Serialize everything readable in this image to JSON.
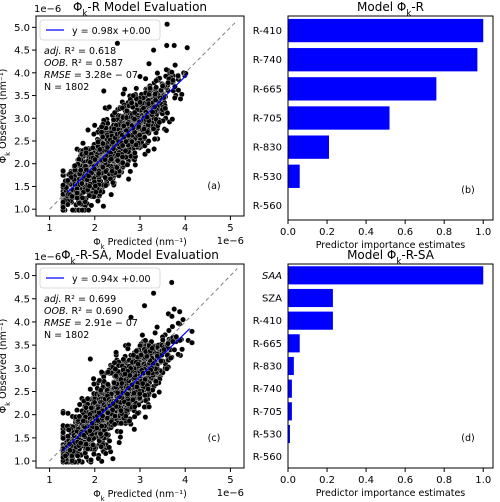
{
  "chart_data": [
    {
      "type": "scatter",
      "panel_label": "(a)",
      "title": "Φk-R Model Evaluation",
      "xlabel": "Φk Predicted (nm⁻¹)",
      "ylabel": "Φk Observed (nm⁻¹)",
      "x_offset": "1e−6",
      "y_offset": "1e−6",
      "xlim": [
        0.7,
        5.3
      ],
      "ylim": [
        0.85,
        5.25
      ],
      "xticks": [
        "1",
        "2",
        "3",
        "4",
        "5"
      ],
      "yticks": [
        "1.0",
        "1.5",
        "2.0",
        "2.5",
        "3.0",
        "3.5",
        "4.0",
        "4.5",
        "5.0"
      ],
      "legend": "y = 0.98x +0.00",
      "stats": [
        "adj. R² = 0.618",
        "OOB. R² = 0.587",
        "RMSE = 3.28e − 07",
        "N = 1802"
      ],
      "fit": {
        "slope": 0.98,
        "intercept": 0.0,
        "x_range": [
          1.4,
          4.05
        ]
      },
      "n_points": 1802,
      "seed": 11,
      "outliers": [
        [
          3.6,
          5.07
        ],
        [
          2.5,
          4.65
        ],
        [
          3.3,
          4.5
        ],
        [
          1.4,
          1.63
        ],
        [
          1.3,
          1.53
        ],
        [
          2.2,
          3.6
        ],
        [
          3.2,
          4.2
        ]
      ],
      "colors": {
        "points": "#000000",
        "edge": "#ffffff",
        "fit": "#0000ff",
        "identity": "#808080"
      }
    },
    {
      "type": "bar",
      "orientation": "horizontal",
      "panel_label": "(b)",
      "title": "Model Φk-R",
      "xlabel": "Predictor importance estimates",
      "xlim": [
        0,
        1.05
      ],
      "xticks": [
        "0.0",
        "0.2",
        "0.4",
        "0.6",
        "0.8",
        "1.0"
      ],
      "categories": [
        "R-410",
        "R-740",
        "R-665",
        "R-705",
        "R-830",
        "R-530",
        "R-560"
      ],
      "values": [
        1.0,
        0.97,
        0.76,
        0.52,
        0.21,
        0.06,
        0.0
      ],
      "color": "#0000ff"
    },
    {
      "type": "scatter",
      "panel_label": "(c)",
      "title": "Φk-R-SA, Model Evaluation",
      "xlabel": "Φk Predicted (nm⁻¹)",
      "ylabel": "Φk Observed (nm⁻¹)",
      "x_offset": "1e−6",
      "y_offset": "1e−6",
      "xlim": [
        0.7,
        5.3
      ],
      "ylim": [
        0.85,
        5.25
      ],
      "xticks": [
        "1",
        "2",
        "3",
        "4",
        "5"
      ],
      "yticks": [
        "1.0",
        "1.5",
        "2.0",
        "2.5",
        "3.0",
        "3.5",
        "4.0",
        "4.5",
        "5.0"
      ],
      "legend": "y = 0.94x +0.00",
      "stats": [
        "adj. R² = 0.699",
        "OOB. R² = 0.690",
        "RMSE = 2.91e − 07",
        "N = 1802"
      ],
      "fit": {
        "slope": 0.94,
        "intercept": 0.0,
        "x_range": [
          1.3,
          4.1
        ]
      },
      "n_points": 1802,
      "seed": 29,
      "outliers": [
        [
          3.7,
          4.85
        ],
        [
          3.3,
          4.62
        ],
        [
          2.8,
          4.1
        ],
        [
          3.1,
          4.35
        ],
        [
          1.9,
          3.2
        ],
        [
          2.4,
          1.05
        ],
        [
          3.95,
          4.05
        ]
      ],
      "colors": {
        "points": "#000000",
        "edge": "#ffffff",
        "fit": "#0000ff",
        "identity": "#808080"
      }
    },
    {
      "type": "bar",
      "orientation": "horizontal",
      "panel_label": "(d)",
      "title": "Model Φk-R-SA",
      "xlabel": "Predictor importance estimates",
      "xlim": [
        0,
        1.05
      ],
      "xticks": [
        "0.0",
        "0.2",
        "0.4",
        "0.6",
        "0.8",
        "1.0"
      ],
      "categories": [
        "SAA",
        "SZA",
        "R-410",
        "R-665",
        "R-830",
        "R-740",
        "R-705",
        "R-530",
        "R-560"
      ],
      "values": [
        1.0,
        0.23,
        0.23,
        0.06,
        0.03,
        0.02,
        0.02,
        0.01,
        0.0
      ],
      "color": "#0000ff"
    }
  ]
}
